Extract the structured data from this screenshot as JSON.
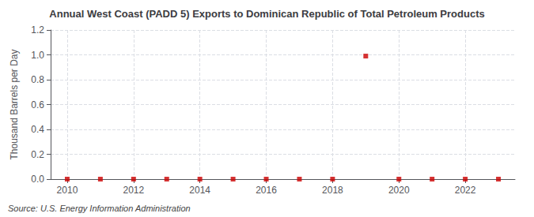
{
  "chart_data": {
    "type": "scatter",
    "title": "Annual West Coast (PADD 5) Exports to Dominican Republic of Total Petroleum Products",
    "ylabel": "Thousand Barrels per Day",
    "source": "Source: U.S. Energy Information Administration",
    "x": [
      2010,
      2011,
      2012,
      2013,
      2014,
      2015,
      2016,
      2017,
      2018,
      2019,
      2020,
      2021,
      2022,
      2023
    ],
    "values": [
      0.0,
      0.0,
      0.0,
      0.0,
      0.0,
      0.0,
      0.0,
      0.0,
      0.0,
      0.99,
      0.0,
      0.0,
      0.0,
      0.0
    ],
    "color": "#cc0000",
    "marker": "square",
    "xlim": [
      2009.5,
      2023.5
    ],
    "xticks": [
      2010,
      2012,
      2014,
      2016,
      2018,
      2020,
      2022
    ],
    "ylim": [
      0.0,
      1.2
    ],
    "yticks": [
      {
        "value": 0.0,
        "label": "0.0"
      },
      0.2,
      0.4,
      0.6,
      0.8,
      {
        "value": 1.0,
        "label": "1.0"
      },
      1.2
    ],
    "grid": true
  }
}
